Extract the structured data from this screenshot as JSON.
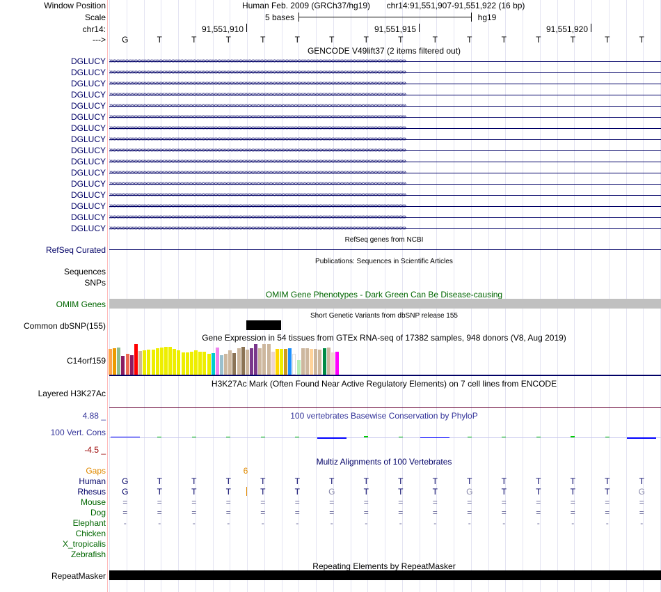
{
  "header": {
    "window_position_label": "Window Position",
    "assembly_text": "Human Feb. 2009 (GRCh37/hg19)",
    "position_text": "chr14:91,551,907-91,551,922 (16 bp)",
    "scale_label": "Scale",
    "scale_text": "5 bases",
    "scale_db": "hg19",
    "chrom_label": "chr14:",
    "strand_label": "--->",
    "coords": [
      "91,551,910",
      "91,551,915",
      "91,551,920"
    ]
  },
  "sequence": [
    "G",
    "T",
    "T",
    "T",
    "T",
    "T",
    "T",
    "T",
    "T",
    "T",
    "T",
    "T",
    "T",
    "T",
    "T",
    "T"
  ],
  "gencode": {
    "title": "GENCODE V49lift37 (2 items filtered out)",
    "items": [
      "DGLUCY",
      "DGLUCY",
      "DGLUCY",
      "DGLUCY",
      "DGLUCY",
      "DGLUCY",
      "DGLUCY",
      "DGLUCY",
      "DGLUCY",
      "DGLUCY",
      "DGLUCY",
      "DGLUCY",
      "DGLUCY",
      "DGLUCY",
      "DGLUCY",
      "DGLUCY"
    ]
  },
  "refseq": {
    "title": "RefSeq genes from NCBI",
    "label": "RefSeq Curated"
  },
  "publications": {
    "title": "Publications: Sequences in Scientific Articles",
    "label": "Sequences"
  },
  "snps_label": "SNPs",
  "omim": {
    "title": "OMIM Gene Phenotypes - Dark Green Can Be Disease-causing",
    "label": "OMIM Genes"
  },
  "dbsnp": {
    "title": "Short Genetic Variants from dbSNP release 155",
    "label": "Common dbSNP(155)"
  },
  "gtex": {
    "title": "Gene Expression in 54 tissues from GTEx RNA-seq of 17382 samples, 948 donors (V8, Aug 2019)",
    "label": "C14orf159",
    "values": [
      0.8,
      0.82,
      0.85,
      0.58,
      0.65,
      0.6,
      0.95,
      0.73,
      0.75,
      0.78,
      0.78,
      0.82,
      0.85,
      0.88,
      0.88,
      0.8,
      0.75,
      0.7,
      0.7,
      0.72,
      0.75,
      0.72,
      0.72,
      0.65,
      0.68,
      0.85,
      0.6,
      0.65,
      0.75,
      0.68,
      0.82,
      0.88,
      0.78,
      0.82,
      0.95,
      0.82,
      0.95,
      0.95,
      0.72,
      0.8,
      0.8,
      0.8,
      0.82,
      0.65,
      0.45,
      0.82,
      0.82,
      0.8,
      0.8,
      0.78,
      0.82,
      0.85,
      0.7,
      0.72
    ],
    "colors": [
      "#FFA54F",
      "#EE9A00",
      "#8FBC8F",
      "#8B1C62",
      "#EE6A50",
      "#8B1C62",
      "#FF0000",
      "#CDB79E",
      "#EEEE00",
      "#EEEE00",
      "#EEEE00",
      "#EEEE00",
      "#EEEE00",
      "#EEEE00",
      "#EEEE00",
      "#EEEE00",
      "#EEEE00",
      "#EEEE00",
      "#EEEE00",
      "#EEEE00",
      "#EEEE00",
      "#EEEE00",
      "#EEEE00",
      "#EEEE00",
      "#00CDCD",
      "#EE82EE",
      "#9AC0CD",
      "#CDB79E",
      "#CDB79E",
      "#8B7355",
      "#CDB79E",
      "#8B7355",
      "#CDB79E",
      "#7A378B",
      "#7A378B",
      "#CDB79E",
      "#CDB79E",
      "#CDB79E",
      "#EED5D2",
      "#FFD700",
      "#EEEE00",
      "#CD9B1D",
      "#1E90FF",
      "#FFFFFF",
      "#B4EEB4",
      "#CDB79E",
      "#CDB79E",
      "#FFD39B",
      "#CDB79E",
      "#CDB79E",
      "#008B45",
      "#CDB79E",
      "#EED5D2",
      "#FF00FF"
    ]
  },
  "h3k27ac": {
    "title": "H3K27Ac Mark (Often Found Near Active Regulatory Elements) on 7 cell lines from ENCODE",
    "label": "Layered H3K27Ac"
  },
  "phylop": {
    "title": "100 vertebrates Basewise Conservation by PhyloP",
    "label": "100 Vert. Cons",
    "max": "4.88 _",
    "min": "-4.5 _",
    "values": [
      0.8,
      0.8,
      0.8,
      0.8,
      0.9,
      0.2,
      -1.2,
      1.5,
      0.6,
      -1.0,
      0.9,
      0.9,
      0.9,
      1.5,
      0.9,
      -1.5
    ],
    "colors": [
      "#0000ff",
      "#00cc00",
      "#00cc00",
      "#00cc00",
      "#00cc00",
      "#00cc00",
      "#0000ff",
      "#00cc00",
      "#00cc00",
      "#0000ff",
      "#00cc00",
      "#00cc00",
      "#00cc00",
      "#00cc00",
      "#00cc00",
      "#0000ff"
    ]
  },
  "multiz": {
    "title": "Multiz Alignments of 100 Vertebrates",
    "gaps_label": "Gaps",
    "gaps_number": "6",
    "species": [
      {
        "name": "Human",
        "bases": [
          "G",
          "T",
          "T",
          "T",
          "T",
          "T",
          "T",
          "T",
          "T",
          "T",
          "T",
          "T",
          "T",
          "T",
          "T",
          "T"
        ]
      },
      {
        "name": "Rhesus",
        "bases": [
          "G",
          "T",
          "T",
          "T",
          "T",
          "T",
          "G",
          "T",
          "T",
          "T",
          "G",
          "T",
          "T",
          "T",
          "T",
          "G"
        ]
      },
      {
        "name": "Mouse",
        "bases": [
          "=",
          "=",
          "=",
          "=",
          "=",
          "=",
          "=",
          "=",
          "=",
          "=",
          "=",
          "=",
          "=",
          "=",
          "=",
          "="
        ]
      },
      {
        "name": "Dog",
        "bases": [
          "=",
          "=",
          "=",
          "=",
          "=",
          "=",
          "=",
          "=",
          "=",
          "=",
          "=",
          "=",
          "=",
          "=",
          "=",
          "="
        ]
      },
      {
        "name": "Elephant",
        "bases": [
          "-",
          "-",
          "-",
          "-",
          "-",
          "-",
          "-",
          "-",
          "-",
          "-",
          "-",
          "-",
          "-",
          "-",
          "-",
          "-"
        ]
      },
      {
        "name": "Chicken",
        "bases": []
      },
      {
        "name": "X_tropicalis",
        "bases": []
      },
      {
        "name": "Zebrafish",
        "bases": []
      }
    ]
  },
  "repeatmasker": {
    "title": "Repeating Elements by RepeatMasker",
    "label": "RepeatMasker"
  },
  "colors": {
    "navy": "#000066",
    "green": "#006600",
    "gray_bar": "#c0c0c0",
    "grid": "#dcdcf0",
    "divider": "#ffbbbb",
    "phylop_title": "#333399",
    "gaps": "#e08a00"
  }
}
